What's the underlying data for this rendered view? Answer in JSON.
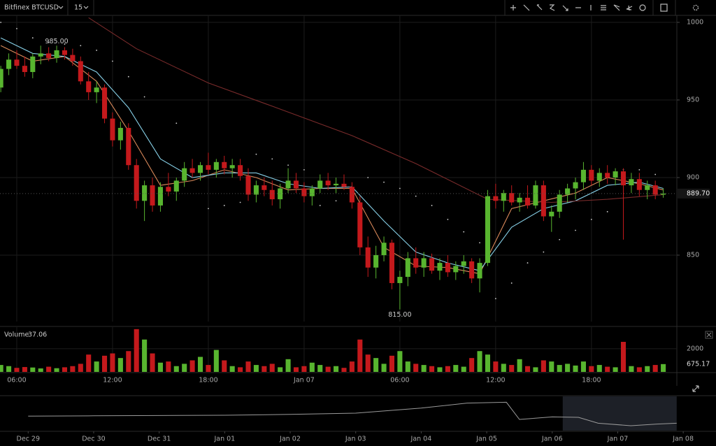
{
  "toolbar": {
    "symbol": "Bitfinex BTCUSD",
    "interval": "15"
  },
  "chart_data": {
    "type": "candlestick",
    "up_color": "#58b52f",
    "down_color": "#c4191c",
    "grid": true,
    "x": [
      5,
      5.5,
      6,
      6.5,
      7,
      7.5,
      8,
      8.5,
      9,
      9.5,
      10,
      10.5,
      11,
      11.5,
      12,
      12.5,
      13,
      13.5,
      14,
      14.5,
      15,
      15.5,
      16,
      16.5,
      17,
      17.5,
      18,
      18.5,
      19,
      19.5,
      20,
      20.5,
      21,
      21.5,
      22,
      22.5,
      23,
      23.5,
      24,
      24.5,
      25,
      25.5,
      26,
      26.5,
      27,
      27.5,
      28,
      28.5,
      29,
      29.5,
      30,
      30.5,
      31,
      31.5,
      32,
      32.5,
      33,
      33.5,
      34,
      34.5,
      35,
      35.5,
      36,
      36.5,
      37,
      37.5,
      38,
      38.5,
      39,
      39.5,
      40,
      40.5,
      41,
      41.5,
      42,
      42.5,
      43,
      43.5,
      44,
      44.5,
      45,
      45.5,
      46,
      46.5
    ],
    "candles": [
      [
        958,
        972,
        955,
        970
      ],
      [
        970,
        980,
        966,
        976
      ],
      [
        976,
        982,
        970,
        972
      ],
      [
        972,
        978,
        965,
        968
      ],
      [
        968,
        980,
        964,
        978
      ],
      [
        978,
        985,
        973,
        980
      ],
      [
        980,
        984,
        975,
        977
      ],
      [
        977,
        985,
        974,
        982
      ],
      [
        982,
        984,
        976,
        979
      ],
      [
        979,
        983,
        972,
        975
      ],
      [
        975,
        978,
        960,
        962
      ],
      [
        962,
        968,
        950,
        955
      ],
      [
        955,
        962,
        948,
        958
      ],
      [
        958,
        960,
        935,
        938
      ],
      [
        938,
        942,
        920,
        924
      ],
      [
        924,
        936,
        918,
        932
      ],
      [
        932,
        935,
        905,
        908
      ],
      [
        908,
        912,
        880,
        885
      ],
      [
        885,
        898,
        872,
        895
      ],
      [
        895,
        900,
        878,
        882
      ],
      [
        882,
        897,
        878,
        894
      ],
      [
        894,
        903,
        888,
        891
      ],
      [
        891,
        900,
        885,
        898
      ],
      [
        898,
        910,
        894,
        906
      ],
      [
        906,
        912,
        900,
        903
      ],
      [
        903,
        910,
        898,
        908
      ],
      [
        908,
        916,
        902,
        905
      ],
      [
        905,
        912,
        900,
        910
      ],
      [
        910,
        914,
        902,
        906
      ],
      [
        906,
        912,
        900,
        908
      ],
      [
        908,
        912,
        898,
        901
      ],
      [
        901,
        906,
        885,
        889
      ],
      [
        889,
        898,
        884,
        895
      ],
      [
        895,
        900,
        888,
        892
      ],
      [
        892,
        898,
        882,
        886
      ],
      [
        886,
        896,
        880,
        893
      ],
      [
        893,
        906,
        890,
        898
      ],
      [
        898,
        903,
        890,
        893
      ],
      [
        893,
        897,
        884,
        888
      ],
      [
        888,
        895,
        882,
        893
      ],
      [
        893,
        902,
        890,
        898
      ],
      [
        898,
        903,
        892,
        895
      ],
      [
        895,
        900,
        890,
        896
      ],
      [
        896,
        902,
        892,
        894
      ],
      [
        894,
        897,
        880,
        884
      ],
      [
        884,
        888,
        850,
        855
      ],
      [
        855,
        862,
        836,
        842
      ],
      [
        842,
        856,
        835,
        850
      ],
      [
        850,
        862,
        846,
        858
      ],
      [
        858,
        860,
        828,
        832
      ],
      [
        832,
        840,
        815,
        836
      ],
      [
        836,
        852,
        830,
        848
      ],
      [
        848,
        855,
        838,
        842
      ],
      [
        842,
        852,
        836,
        848
      ],
      [
        848,
        851,
        838,
        840
      ],
      [
        840,
        848,
        834,
        845
      ],
      [
        845,
        850,
        836,
        839
      ],
      [
        839,
        846,
        834,
        843
      ],
      [
        843,
        850,
        838,
        846
      ],
      [
        846,
        848,
        832,
        835
      ],
      [
        835,
        848,
        826,
        845
      ],
      [
        845,
        892,
        843,
        888
      ],
      [
        888,
        896,
        880,
        885
      ],
      [
        885,
        892,
        878,
        890
      ],
      [
        890,
        895,
        882,
        884
      ],
      [
        884,
        890,
        878,
        887
      ],
      [
        887,
        895,
        880,
        882
      ],
      [
        882,
        898,
        880,
        895
      ],
      [
        895,
        898,
        872,
        875
      ],
      [
        875,
        882,
        865,
        878
      ],
      [
        878,
        892,
        874,
        889
      ],
      [
        889,
        896,
        884,
        893
      ],
      [
        893,
        900,
        886,
        897
      ],
      [
        897,
        910,
        892,
        905
      ],
      [
        905,
        908,
        895,
        898
      ],
      [
        898,
        906,
        894,
        903
      ],
      [
        903,
        908,
        896,
        900
      ],
      [
        900,
        906,
        895,
        904
      ],
      [
        904,
        906,
        860,
        895
      ],
      [
        895,
        903,
        890,
        899
      ],
      [
        899,
        903,
        888,
        892
      ],
      [
        892,
        898,
        886,
        895
      ],
      [
        895,
        898,
        886,
        889
      ],
      [
        889,
        893,
        887,
        889.7
      ]
    ],
    "xlim": [
      4.95,
      47.35
    ],
    "xticks": [
      {
        "value": 6,
        "label": "06:00"
      },
      {
        "value": 12,
        "label": "12:00"
      },
      {
        "value": 18,
        "label": "18:00"
      },
      {
        "value": 24,
        "label": "Jan 07"
      },
      {
        "value": 30,
        "label": "06:00"
      },
      {
        "value": 36,
        "label": "12:00"
      },
      {
        "value": 42,
        "label": "18:00"
      }
    ],
    "ylim": [
      807.2,
      1004.5
    ],
    "yticks": [
      850,
      900,
      950,
      1000
    ],
    "overlays": [
      {
        "color": "#d9895a",
        "x": [
          5,
          7,
          9,
          11,
          13,
          15,
          17,
          19,
          21,
          23,
          25,
          27,
          29,
          31,
          33,
          35,
          37,
          39,
          41,
          43,
          45,
          46.5
        ],
        "values": [
          985,
          975,
          978,
          962,
          930,
          895,
          898,
          905,
          900,
          892,
          893,
          893,
          855,
          843,
          842,
          838,
          880,
          885,
          890,
          900,
          896,
          892
        ]
      },
      {
        "color": "#86cfe6",
        "x": [
          5,
          7,
          9,
          11,
          13,
          15,
          17,
          19,
          21,
          23,
          25,
          27,
          29,
          31,
          33,
          35,
          37,
          39,
          41,
          43,
          45,
          46.5
        ],
        "values": [
          990,
          980,
          978,
          968,
          945,
          912,
          900,
          903,
          903,
          896,
          893,
          894,
          872,
          852,
          845,
          840,
          868,
          880,
          885,
          895,
          897,
          893
        ]
      },
      {
        "color": "#7a2b2b",
        "x": [
          10.5,
          13.5,
          18,
          22,
          27,
          31,
          35.5,
          39.5,
          43,
          46.5
        ],
        "values": [
          1003,
          983,
          961,
          946,
          927,
          909,
          886,
          884,
          886,
          889
        ]
      }
    ],
    "sar": {
      "color": "#d0d0d0",
      "x": [
        5,
        6,
        7,
        8,
        9,
        10,
        11,
        12,
        13,
        14,
        16,
        18,
        19,
        20,
        21,
        22,
        23,
        24,
        25,
        26,
        27,
        28,
        29,
        30,
        31,
        32,
        33,
        34,
        35,
        36,
        37,
        38,
        39,
        40,
        41,
        42,
        43,
        44,
        45,
        46
      ],
      "values": [
        1000,
        996,
        990,
        987,
        986,
        985,
        982,
        975,
        965,
        952,
        935,
        880,
        882,
        884,
        915,
        912,
        908,
        905,
        882,
        885,
        887,
        900,
        897,
        893,
        888,
        882,
        873,
        865,
        858,
        822,
        832,
        845,
        852,
        860,
        866,
        873,
        878,
        905,
        905,
        902
      ]
    },
    "annotations": [
      {
        "x": 8.5,
        "value": 985,
        "label": "985.00",
        "side": "above"
      },
      {
        "x": 30,
        "value": 815,
        "label": "815.00",
        "side": "below"
      }
    ],
    "last_price": {
      "value": 889.7,
      "label": "889.70"
    },
    "volume": {
      "title": "Volume",
      "last": 37.06,
      "values": [
        600,
        500,
        350,
        420,
        380,
        300,
        450,
        320,
        400,
        500,
        700,
        1500,
        900,
        1400,
        1600,
        1200,
        1800,
        3700,
        2800,
        1600,
        800,
        900,
        500,
        700,
        1000,
        1300,
        600,
        1900,
        1000,
        500,
        400,
        900,
        600,
        500,
        700,
        400,
        1100,
        400,
        500,
        800,
        600,
        450,
        500,
        350,
        900,
        2800,
        1500,
        1200,
        700,
        1400,
        1800,
        900,
        700,
        600,
        500,
        400,
        500,
        600,
        450,
        1200,
        1800,
        1500,
        900,
        700,
        600,
        1100,
        500,
        400,
        1000,
        900,
        600,
        700,
        550,
        900,
        500,
        600,
        450,
        400,
        2600,
        500,
        400,
        500,
        600,
        675.17
      ],
      "ylim": [
        0,
        3750
      ],
      "yticks": [
        2000
      ],
      "marker": {
        "value": 675.17,
        "label": "675.17"
      }
    },
    "navigator": {
      "x": [
        0,
        1,
        2,
        3,
        4,
        5,
        6,
        6.7,
        7.3,
        7.5,
        8,
        8.4,
        8.7,
        9.2,
        9.6,
        9.9
      ],
      "values": [
        965,
        968,
        972,
        975,
        985,
        1000,
        1060,
        1120,
        1130,
        925,
        955,
        950,
        880,
        850,
        870,
        880
      ],
      "xlim": [
        -0.43,
        10.5
      ],
      "ylim": [
        800,
        1200
      ],
      "range": [
        8.16,
        9.9
      ],
      "xticks": [
        {
          "value": 0,
          "label": "Dec 29"
        },
        {
          "value": 1,
          "label": "Dec 30"
        },
        {
          "value": 2,
          "label": "Dec 31"
        },
        {
          "value": 3,
          "label": "Jan 01"
        },
        {
          "value": 4,
          "label": "Jan 02"
        },
        {
          "value": 5,
          "label": "Jan 03"
        },
        {
          "value": 6,
          "label": "Jan 04"
        },
        {
          "value": 7,
          "label": "Jan 05"
        },
        {
          "value": 8,
          "label": "Jan 06"
        },
        {
          "value": 9,
          "label": "Jan 07"
        },
        {
          "value": 10,
          "label": "Jan 08"
        }
      ]
    }
  }
}
